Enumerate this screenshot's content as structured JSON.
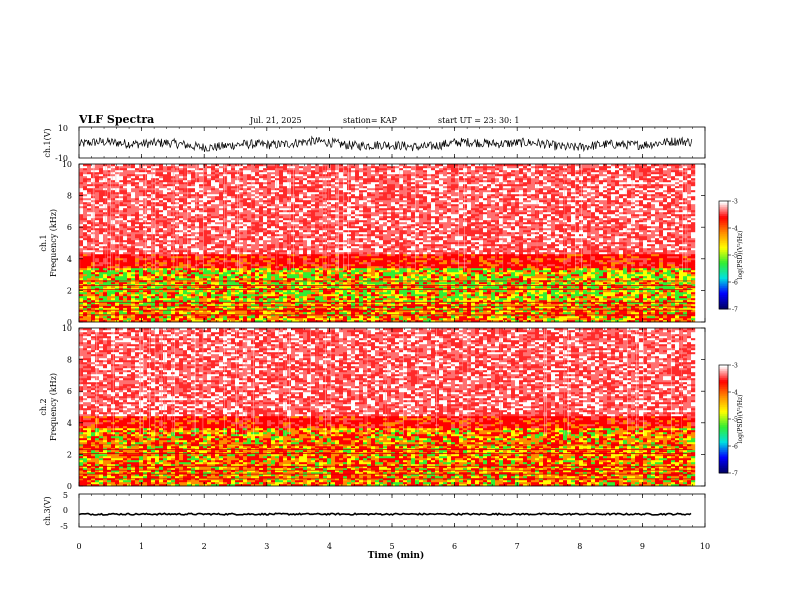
{
  "header": {
    "title": "VLF Spectra",
    "date": "Jul. 21, 2025",
    "station": "station= KAP",
    "start_ut": "start UT =  23: 30: 1"
  },
  "colors": {
    "trace": "#000000",
    "frame": "#000000",
    "spec_white": "#ffffff",
    "spec_red": "#ff0000",
    "spec_orange": "#ff8c00",
    "spec_yellow": "#ffff00",
    "spec_green": "#33ee33",
    "spec_cyan": "#00e0e0",
    "spec_blue": "#0000ff",
    "spec_navy": "#000066"
  },
  "chart_data": [
    {
      "type": "line",
      "id": "ch1",
      "ylabel": "ch.1(V)",
      "ylim": [
        -10,
        10
      ],
      "yticks": [
        "10",
        "-10"
      ],
      "xlim": [
        0,
        10
      ],
      "description_values": "noise trace roughly between -5 and 3 V over 0-9.8 min"
    },
    {
      "type": "heatmap",
      "id": "ch1_spec",
      "ylabel_top": "ch.1",
      "ylabel": "Frequency (kHz)",
      "ylim": [
        0,
        10
      ],
      "yticks": [
        "0",
        "2",
        "4",
        "6",
        "8",
        "10"
      ],
      "xlim": [
        0,
        10
      ],
      "data_end_min": 9.8,
      "bands": [
        {
          "from": 0.0,
          "to": 1.2,
          "level": -4.4
        },
        {
          "from": 1.2,
          "to": 3.4,
          "level": -5.0
        },
        {
          "from": 3.4,
          "to": 4.2,
          "level": -4.1
        },
        {
          "from": 4.2,
          "to": 10.0,
          "level": -3.3
        }
      ],
      "colorbar": {
        "label": "log(PSD)(V²/Hz)",
        "ticks": [
          "-3",
          "-4",
          "-5",
          "-6",
          "-7"
        ],
        "range": [
          -7,
          -3
        ]
      }
    },
    {
      "type": "heatmap",
      "id": "ch2_spec",
      "ylabel_top": "ch.2",
      "ylabel": "Frequency (kHz)",
      "ylim": [
        0,
        10
      ],
      "yticks": [
        "0",
        "2",
        "4",
        "6",
        "8",
        "10"
      ],
      "xlim": [
        0,
        10
      ],
      "data_end_min": 9.8,
      "bands": [
        {
          "from": 0.0,
          "to": 0.8,
          "level": -4.4
        },
        {
          "from": 0.8,
          "to": 3.6,
          "level": -4.6
        },
        {
          "from": 3.6,
          "to": 4.4,
          "level": -3.9
        },
        {
          "from": 4.4,
          "to": 10.0,
          "level": -3.3
        }
      ],
      "colorbar": {
        "label": "log(PSD)(V²/Hz)",
        "ticks": [
          "-3",
          "-4",
          "-5",
          "-6",
          "-7"
        ],
        "range": [
          -7,
          -3
        ]
      }
    },
    {
      "type": "line",
      "id": "ch3",
      "ylabel": "ch.3(V)",
      "ylim": [
        -5,
        5
      ],
      "yticks": [
        "5",
        "0",
        "-5"
      ],
      "xlim": [
        0,
        10
      ],
      "description_values": "flat trace near -1 V with small noise"
    }
  ],
  "xaxis": {
    "label": "Time (min)",
    "ticks": [
      "0",
      "1",
      "2",
      "3",
      "4",
      "5",
      "6",
      "7",
      "8",
      "9",
      "10"
    ]
  }
}
